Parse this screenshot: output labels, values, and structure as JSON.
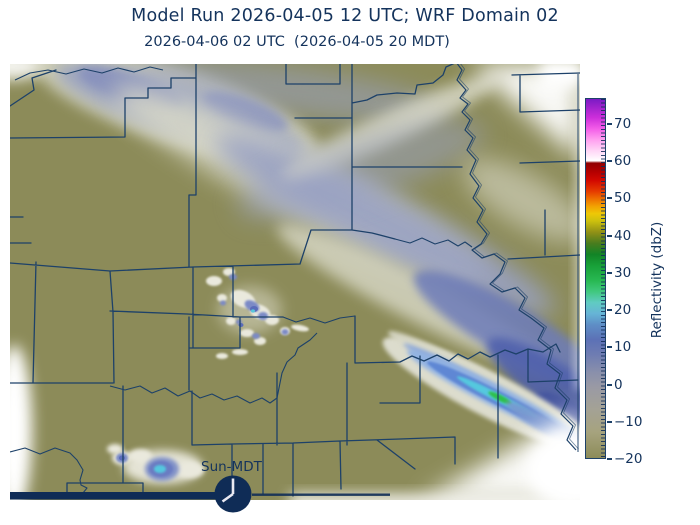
{
  "header": {
    "title": "Model Run 2026-04-05 12 UTC; WRF Domain 02",
    "subtitle": "2026-04-06 02 UTC  (2026-04-05 20 MDT)"
  },
  "map": {
    "region": "WRF domain 02 county map with simulated radar reflectivity",
    "clock": {
      "label": "Sun-MDT",
      "time_shown": "8:00",
      "meaning": "20 MDT"
    },
    "features": [
      {
        "name": "weak-stratiform-band-northwest",
        "approx_dbz": "-10 to 5"
      },
      {
        "name": "broad-weak-band-center-to-southeast",
        "approx_dbz": "-10 to 10"
      },
      {
        "name": "convective-cells-center",
        "approx_dbz": "0 to 20"
      },
      {
        "name": "intense-linear-band-southeast",
        "approx_dbz": "10 to 30"
      },
      {
        "name": "small-cell-southwest",
        "approx_dbz": "0 to 20"
      }
    ]
  },
  "colorbar": {
    "label": "Reflectivity (dbZ)",
    "min": -20,
    "max": 77,
    "ticks": [
      {
        "value": 70,
        "label": "70"
      },
      {
        "value": 60,
        "label": "60"
      },
      {
        "value": 50,
        "label": "50"
      },
      {
        "value": 40,
        "label": "40"
      },
      {
        "value": 30,
        "label": "30"
      },
      {
        "value": 20,
        "label": "20"
      },
      {
        "value": 10,
        "label": "10"
      },
      {
        "value": 0,
        "label": "0"
      },
      {
        "value": -10,
        "label": "−10"
      },
      {
        "value": -20,
        "label": "−20"
      }
    ],
    "stops": [
      {
        "v": -20,
        "c": "#8d8c59"
      },
      {
        "v": -13,
        "c": "#a6a37e"
      },
      {
        "v": -7,
        "c": "#a4a295"
      },
      {
        "v": -1,
        "c": "#9a9aa4"
      },
      {
        "v": 3,
        "c": "#8a90ab"
      },
      {
        "v": 8,
        "c": "#6e7cb2"
      },
      {
        "v": 12,
        "c": "#5c71b6"
      },
      {
        "v": 16,
        "c": "#5e8ec6"
      },
      {
        "v": 19,
        "c": "#66b4d6"
      },
      {
        "v": 22,
        "c": "#60cbc2"
      },
      {
        "v": 25,
        "c": "#40c87e"
      },
      {
        "v": 28,
        "c": "#28b852"
      },
      {
        "v": 32,
        "c": "#18a038"
      },
      {
        "v": 35,
        "c": "#128426"
      },
      {
        "v": 38,
        "c": "#497c1e"
      },
      {
        "v": 41,
        "c": "#909016"
      },
      {
        "v": 44,
        "c": "#ccc00e"
      },
      {
        "v": 46,
        "c": "#eec806"
      },
      {
        "v": 48,
        "c": "#f2a202"
      },
      {
        "v": 50,
        "c": "#ee7000"
      },
      {
        "v": 52,
        "c": "#e63c00"
      },
      {
        "v": 55,
        "c": "#d20800"
      },
      {
        "v": 57,
        "c": "#b80000"
      },
      {
        "v": 59.7,
        "c": "#900000"
      },
      {
        "v": 60.3,
        "c": "#ffffff"
      },
      {
        "v": 63,
        "c": "#ffd6f6"
      },
      {
        "v": 66,
        "c": "#ff9ff0"
      },
      {
        "v": 69,
        "c": "#f35ce8"
      },
      {
        "v": 72,
        "c": "#cc2eda"
      },
      {
        "v": 75,
        "c": "#9c22cc"
      },
      {
        "v": 77,
        "c": "#7a1ac4"
      }
    ]
  },
  "colors": {
    "page_background": "#ffffff",
    "land": "#8c8b59",
    "boundary_lines": "#1d4169",
    "text": "#14335c",
    "bottom_bar_and_clock": "#0f2c56",
    "echo_palette": {
      "cream": "#d9d9c8",
      "light_slate_blue": "#99a1c3",
      "mid_blue": "#6d7cba",
      "deep_blue": "#4f60ac",
      "light_blue": "#92b2e2",
      "cyan": "#55c8de",
      "green": "#2ec04c",
      "white_cell": "#eae9dd"
    }
  }
}
